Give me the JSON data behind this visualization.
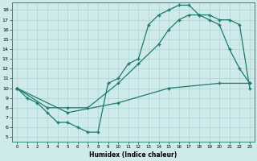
{
  "xlabel": "Humidex (Indice chaleur)",
  "xlim": [
    -0.5,
    23.5
  ],
  "ylim": [
    4.5,
    18.8
  ],
  "yticks": [
    5,
    6,
    7,
    8,
    9,
    10,
    11,
    12,
    13,
    14,
    15,
    16,
    17,
    18
  ],
  "xticks": [
    0,
    1,
    2,
    3,
    4,
    5,
    6,
    7,
    8,
    9,
    10,
    11,
    12,
    13,
    14,
    15,
    16,
    17,
    18,
    19,
    20,
    21,
    22,
    23
  ],
  "line_color": "#1e7b6b",
  "bg_color": "#ceeaea",
  "grid_color": "#aed4d4",
  "line1_x": [
    0,
    1,
    2,
    3,
    4,
    5,
    6,
    7,
    8,
    9,
    10,
    11,
    12,
    13,
    14,
    15,
    16,
    17,
    18,
    19,
    20,
    21,
    22,
    23
  ],
  "line1_y": [
    10,
    9,
    8.5,
    7.5,
    6.5,
    6.5,
    6.0,
    5.5,
    5.5,
    10.5,
    11.0,
    12.5,
    13.0,
    16.5,
    17.5,
    18.0,
    18.5,
    18.5,
    17.5,
    17.5,
    17.0,
    17.0,
    16.5,
    10.0
  ],
  "line2_x": [
    0,
    3,
    5,
    7,
    10,
    12,
    14,
    15,
    16,
    17,
    18,
    19,
    20,
    21,
    22,
    23
  ],
  "line2_y": [
    10,
    8.0,
    8.0,
    8.0,
    10.5,
    12.5,
    14.5,
    16.0,
    17.0,
    17.5,
    17.5,
    17.0,
    16.5,
    14.0,
    12.0,
    10.5
  ],
  "line3_x": [
    0,
    5,
    10,
    15,
    20,
    23
  ],
  "line3_y": [
    10,
    7.5,
    8.5,
    10.0,
    10.5,
    10.5
  ]
}
